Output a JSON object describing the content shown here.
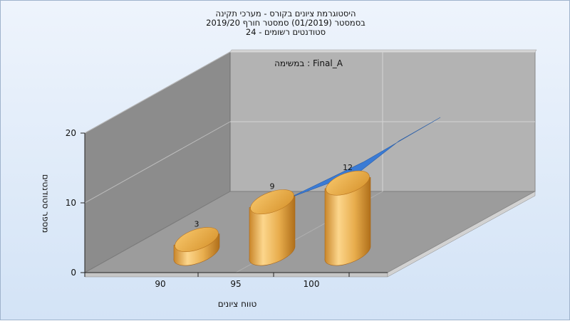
{
  "chart_data": {
    "type": "bar",
    "title_lines": [
      "היסטוגרמת ציונים בקורס - מערכי תקינה",
      "בסמסטר  (01/2019)  סמסטר חורף 2019/20",
      "סטודנטים רשומים - 24"
    ],
    "annotation": "במשימה : Final_A",
    "xlabel": "טווח ציונים",
    "ylabel": "מספר סטודנטים",
    "categories": [
      "90",
      "95",
      "100"
    ],
    "series": [
      {
        "values": [
          3,
          9,
          12
        ]
      }
    ],
    "trend_values": [
      9,
      12
    ],
    "yticks": [
      0,
      10,
      20
    ],
    "ylim": [
      0,
      20
    ],
    "grid": true,
    "colors": {
      "bar_light": "#fcd68c",
      "bar_mid": "#e3a845",
      "bar_dark": "#b06f1a",
      "trend": "#3a7bd5"
    }
  }
}
